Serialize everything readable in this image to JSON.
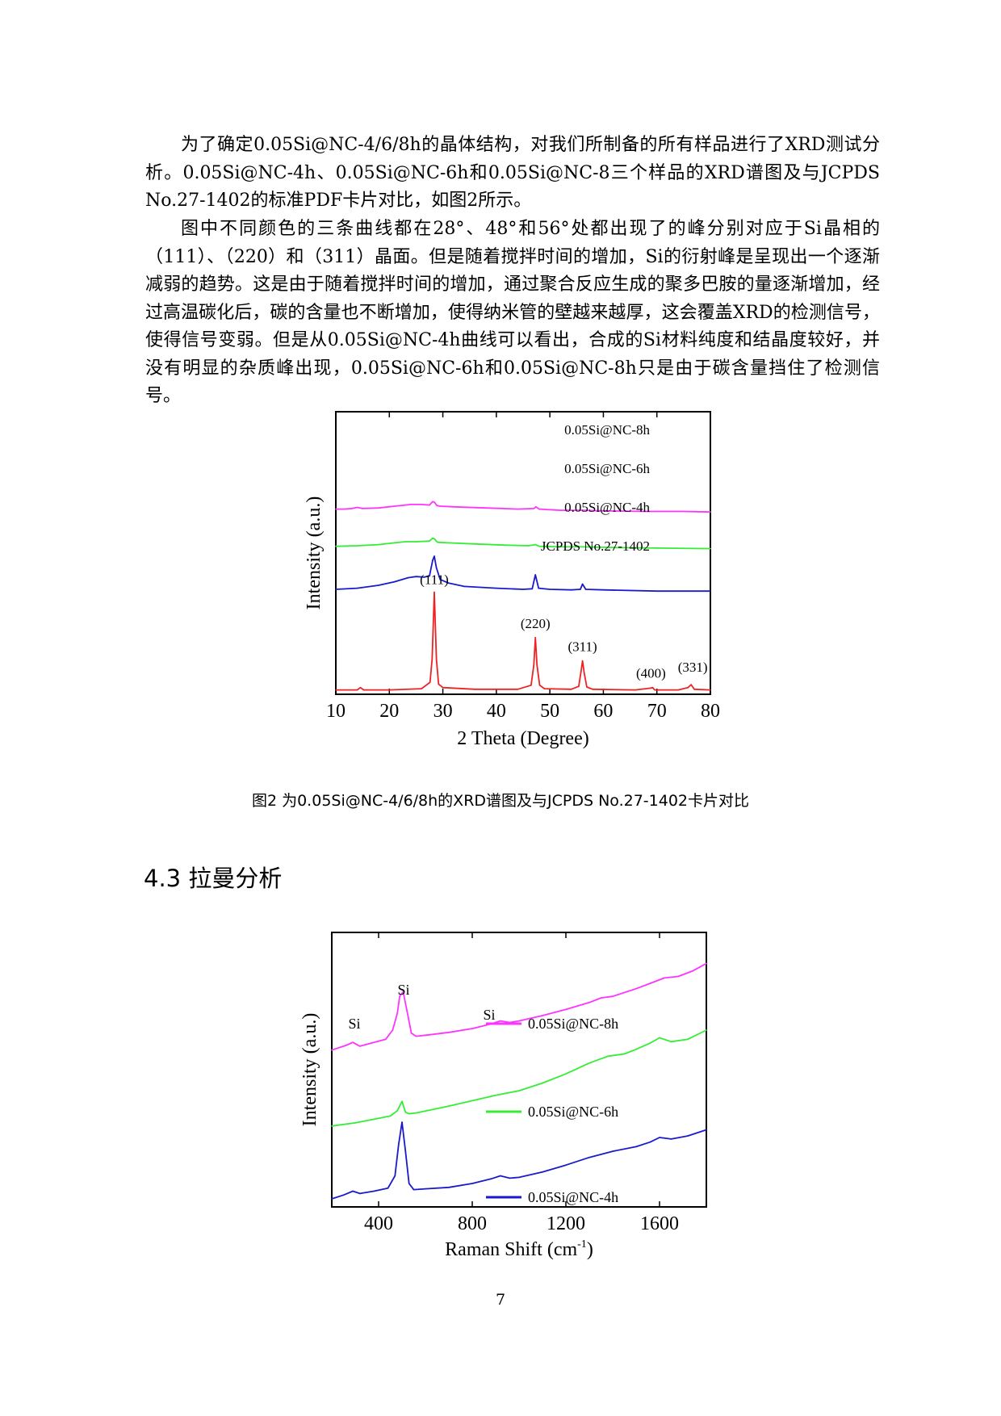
{
  "paragraphs": [
    "为了确定0.05Si@NC-4/6/8h的晶体结构，对我们所制备的所有样品进行了XRD测试分析。0.05Si@NC-4h、0.05Si@NC-6h和0.05Si@NC-8三个样品的XRD谱图及与JCPDS No.27-1402的标准PDF卡片对比，如图2所示。",
    "图中不同颜色的三条曲线都在28°、48°和56°处都出现了的峰分别对应于Si晶相的（111）、（220）和（311）晶面。但是随着搅拌时间的增加，Si的衍射峰是呈现出一个逐渐减弱的趋势。这是由于随着搅拌时间的增加，通过聚合反应生成的聚多巴胺的量逐渐增加，经过高温碳化后，碳的含量也不断增加，使得纳米管的壁越来越厚，这会覆盖XRD的检测信号，使得信号变弱。但是从0.05Si@NC-4h曲线可以看出，合成的Si材料纯度和结晶度较好，并没有明显的杂质峰出现，0.05Si@NC-6h和0.05Si@NC-8h只是由于碳含量挡住了检测信号。"
  ],
  "figure2_caption": "图2 为0.05Si@NC-4/6/8h的XRD谱图及与JCPDS No.27-1402卡片对比",
  "section_title": "4.3 拉曼分析",
  "page_number": "7",
  "chart_data": [
    {
      "type": "line",
      "xlabel": "2 Theta (Degree)",
      "ylabel": "Intensity (a.u.)",
      "xlim": [
        10,
        80
      ],
      "xticks": [
        "10",
        "20",
        "30",
        "40",
        "50",
        "60",
        "70",
        "80"
      ],
      "yticks": "none",
      "grid": false,
      "series": [
        {
          "name": "0.05Si@NC-8h",
          "color": "#ff33ff",
          "offset": 3.08,
          "x": [
            10,
            11.5,
            13,
            14,
            15,
            18,
            21,
            23,
            24,
            26,
            27.5,
            28.1,
            28.4,
            28.9,
            29.5,
            32,
            38,
            44,
            47,
            47.4,
            48,
            52,
            56,
            60,
            68,
            75,
            80
          ],
          "y": [
            0.05,
            0.05,
            0.06,
            0.08,
            0.06,
            0.07,
            0.1,
            0.12,
            0.13,
            0.13,
            0.12,
            0.18,
            0.17,
            0.11,
            0.1,
            0.09,
            0.07,
            0.05,
            0.06,
            0.09,
            0.05,
            0.03,
            0.03,
            0.02,
            0.01,
            0.01,
            0.0
          ]
        },
        {
          "name": "0.05Si@NC-6h",
          "color": "#33ee33",
          "offset": 2.45,
          "x": [
            10,
            14,
            18,
            21,
            23,
            25,
            27.5,
            28.1,
            28.4,
            29,
            31,
            36,
            42,
            46,
            47.3,
            48,
            52,
            56,
            62,
            70,
            80
          ],
          "y": [
            0.04,
            0.05,
            0.07,
            0.1,
            0.12,
            0.12,
            0.13,
            0.18,
            0.17,
            0.11,
            0.1,
            0.08,
            0.06,
            0.05,
            0.07,
            0.04,
            0.03,
            0.03,
            0.02,
            0.01,
            0.0
          ]
        },
        {
          "name": "0.05Si@NC-4h",
          "color": "#1a1acc",
          "offset": 1.7,
          "x": [
            10,
            14,
            18,
            21,
            23.5,
            25,
            26.5,
            27.5,
            28.1,
            28.4,
            28.8,
            29.5,
            31,
            34,
            40,
            45,
            46.7,
            47.3,
            47.9,
            50,
            54,
            55.7,
            56.1,
            56.7,
            60,
            70,
            80
          ],
          "y": [
            0.05,
            0.07,
            0.12,
            0.18,
            0.25,
            0.27,
            0.26,
            0.28,
            0.55,
            0.62,
            0.42,
            0.22,
            0.16,
            0.1,
            0.07,
            0.05,
            0.06,
            0.3,
            0.07,
            0.05,
            0.04,
            0.05,
            0.14,
            0.05,
            0.04,
            0.02,
            0.02
          ]
        },
        {
          "name": "JCPDS No.27-1402",
          "color": "#ee2222",
          "offset": 0,
          "x": [
            10,
            14,
            14.6,
            15.2,
            20,
            26,
            27.6,
            28.0,
            28.4,
            28.8,
            29.2,
            30,
            36,
            44,
            46.5,
            47.0,
            47.3,
            47.6,
            48.1,
            49,
            54,
            55.4,
            55.8,
            56.1,
            56.4,
            56.9,
            58,
            66,
            68.8,
            69.2,
            69.6,
            74,
            75.8,
            76.4,
            77.0,
            80
          ],
          "y": [
            0.02,
            0.02,
            0.06,
            0.02,
            0.02,
            0.04,
            0.15,
            0.55,
            1.7,
            0.55,
            0.12,
            0.06,
            0.03,
            0.03,
            0.1,
            0.45,
            0.92,
            0.45,
            0.1,
            0.04,
            0.03,
            0.08,
            0.32,
            0.52,
            0.32,
            0.07,
            0.03,
            0.02,
            0.05,
            0.06,
            0.02,
            0.02,
            0.06,
            0.11,
            0.03,
            0.02
          ]
        }
      ],
      "annotations": [
        {
          "text": "(111)",
          "x": 28.4
        },
        {
          "text": "(220)",
          "x": 47.3
        },
        {
          "text": "(311)",
          "x": 56.1
        },
        {
          "text": "(400)",
          "x": 69.2
        },
        {
          "text": "(331)",
          "x": 76.4
        }
      ]
    },
    {
      "type": "line",
      "xlabel": "Raman Shift (cm",
      "xlabel_sup": "-1",
      "xlabel_close": ")",
      "ylabel": "Intensity (a.u.)",
      "xlim": [
        200,
        1800
      ],
      "xticks": [
        "400",
        "800",
        "1200",
        "1600"
      ],
      "yticks": "none",
      "grid": false,
      "legend": "right, beside each curve",
      "series": [
        {
          "name": "0.05Si@NC-8h",
          "color": "#ff33ff",
          "offset": 1.92,
          "x": [
            200,
            260,
            290,
            320,
            380,
            430,
            460,
            480,
            490,
            505,
            520,
            540,
            560,
            620,
            700,
            800,
            880,
            920,
            960,
            1000,
            1100,
            1200,
            1300,
            1350,
            1400,
            1500,
            1560,
            1620,
            1680,
            1740,
            1800
          ],
          "y": [
            0.02,
            0.08,
            0.12,
            0.07,
            0.12,
            0.16,
            0.28,
            0.5,
            0.72,
            0.78,
            0.55,
            0.24,
            0.2,
            0.22,
            0.25,
            0.3,
            0.36,
            0.4,
            0.38,
            0.4,
            0.47,
            0.55,
            0.64,
            0.7,
            0.72,
            0.82,
            0.89,
            0.96,
            0.98,
            1.05,
            1.15
          ]
        },
        {
          "name": "0.05Si@NC-6h",
          "color": "#33ee33",
          "offset": 0.95,
          "x": [
            200,
            300,
            400,
            450,
            480,
            500,
            515,
            530,
            560,
            700,
            900,
            1000,
            1100,
            1200,
            1300,
            1380,
            1450,
            1500,
            1560,
            1600,
            1650,
            1720,
            1800
          ],
          "y": [
            0.0,
            0.04,
            0.1,
            0.13,
            0.2,
            0.32,
            0.18,
            0.16,
            0.17,
            0.26,
            0.4,
            0.46,
            0.56,
            0.68,
            0.82,
            0.91,
            0.94,
            1.0,
            1.08,
            1.15,
            1.1,
            1.13,
            1.25
          ]
        },
        {
          "name": "0.05Si@NC-4h",
          "color": "#1a1acc",
          "offset": 0,
          "x": [
            200,
            250,
            290,
            320,
            380,
            440,
            470,
            485,
            500,
            515,
            530,
            550,
            600,
            700,
            800,
            880,
            920,
            960,
            1000,
            1100,
            1200,
            1300,
            1400,
            1500,
            1560,
            1600,
            1650,
            1720,
            1800
          ],
          "y": [
            0.0,
            0.05,
            0.1,
            0.07,
            0.1,
            0.14,
            0.3,
            0.7,
            1.0,
            0.62,
            0.2,
            0.12,
            0.13,
            0.15,
            0.2,
            0.26,
            0.3,
            0.27,
            0.28,
            0.35,
            0.44,
            0.54,
            0.62,
            0.68,
            0.74,
            0.8,
            0.78,
            0.82,
            0.9
          ]
        }
      ],
      "annotations": [
        {
          "text": "Si",
          "x": 290
        },
        {
          "text": "Si",
          "x": 500
        },
        {
          "text": "Si",
          "x": 915
        }
      ]
    }
  ]
}
